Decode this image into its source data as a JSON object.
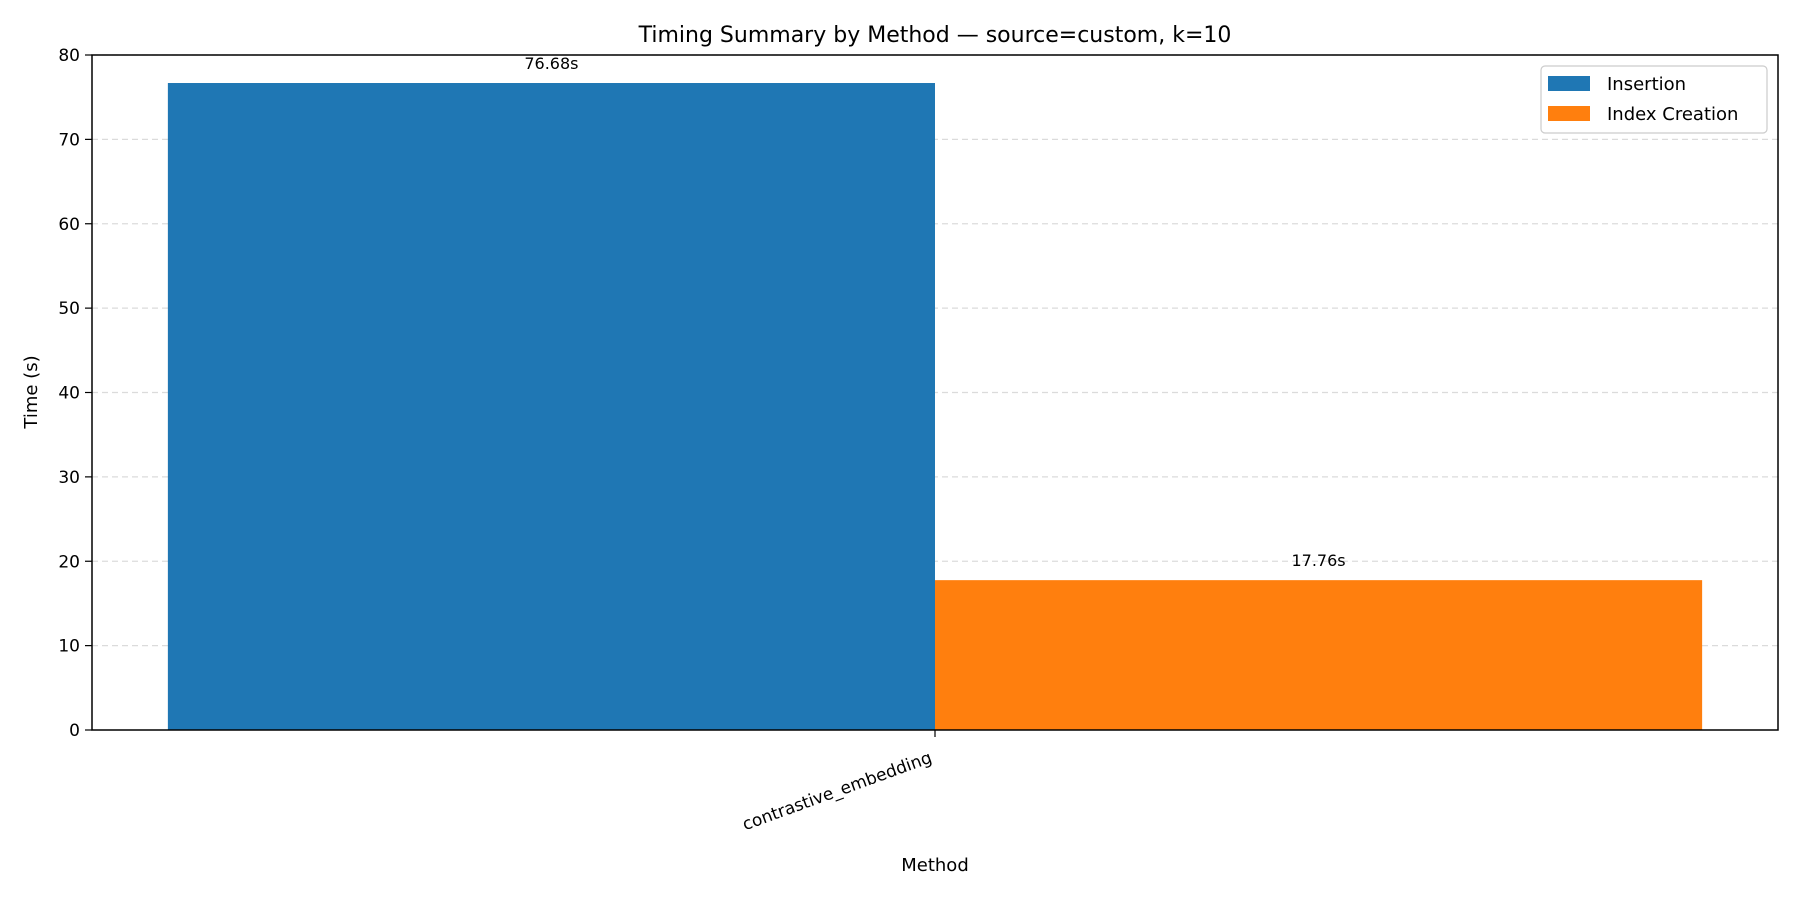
{
  "chart_data": {
    "type": "bar",
    "title": "Timing Summary by Method — source=custom, k=10",
    "xlabel": "Method",
    "ylabel": "Time (s)",
    "categories": [
      "contrastive_embedding"
    ],
    "ylim": [
      0,
      80
    ],
    "yticks": [
      0,
      10,
      20,
      30,
      40,
      50,
      60,
      70,
      80
    ],
    "grid": "y-dashed",
    "legend_position": "top-right",
    "series": [
      {
        "name": "Insertion",
        "color": "#1f77b4",
        "values": [
          76.68
        ],
        "labels": [
          "76.68s"
        ]
      },
      {
        "name": "Index Creation",
        "color": "#ff7f0e",
        "values": [
          17.76
        ],
        "labels": [
          "17.76s"
        ]
      }
    ]
  }
}
